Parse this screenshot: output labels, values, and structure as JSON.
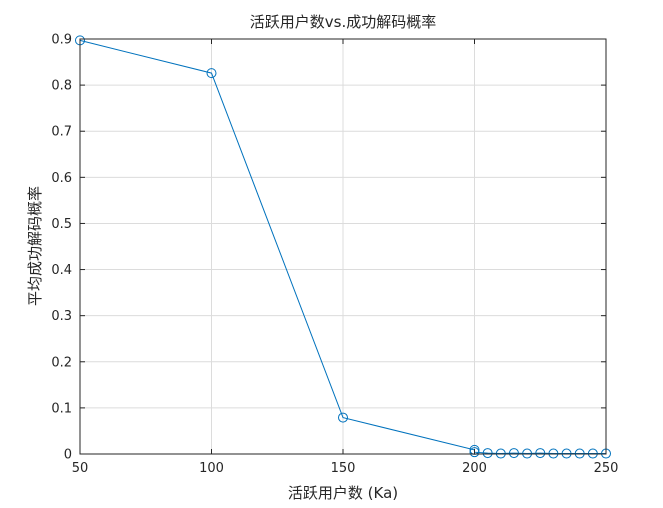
{
  "chart_data": {
    "type": "line",
    "title": "活跃用户数vs.成功解码概率",
    "xlabel": "活跃用户数 (Ka)",
    "ylabel": "平均成功解码概率",
    "xlim": [
      50,
      250
    ],
    "ylim": [
      0,
      0.9
    ],
    "xticks": [
      50,
      100,
      150,
      200,
      250
    ],
    "xtick_labels": [
      "50",
      "100",
      "150",
      "200",
      "250"
    ],
    "yticks": [
      0,
      0.1,
      0.2,
      0.3,
      0.4,
      0.5,
      0.6,
      0.7,
      0.8,
      0.9
    ],
    "ytick_labels": [
      "0",
      "0.1",
      "0.2",
      "0.3",
      "0.4",
      "0.5",
      "0.6",
      "0.7",
      "0.8",
      "0.9"
    ],
    "grid": true,
    "series": [
      {
        "color": "#0072BD",
        "marker": "circle",
        "x": [
          50,
          100,
          150,
          200,
          200,
          205,
          210,
          215,
          220,
          225,
          230,
          235,
          240,
          245,
          250
        ],
        "y": [
          0.897,
          0.826,
          0.079,
          0.009,
          0.004,
          0.002,
          0.001,
          0.002,
          0.001,
          0.002,
          0.001,
          0.001,
          0.001,
          0.001,
          0.001
        ]
      }
    ]
  }
}
